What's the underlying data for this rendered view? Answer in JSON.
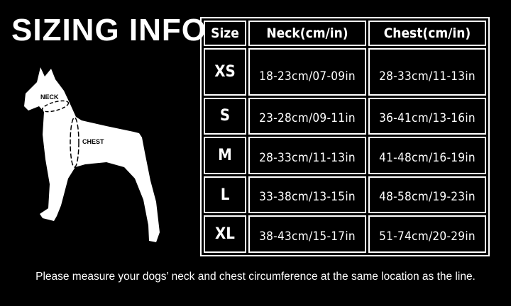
{
  "title": "SIZING INFO",
  "diagram": {
    "neck_label": "NECK",
    "chest_label": "CHEST"
  },
  "table": {
    "headers": [
      "Size",
      "Neck(cm/in)",
      "Chest(cm/in)"
    ],
    "rows": [
      {
        "size": "XS",
        "neck": "18-23cm/07-09in",
        "chest": "28-33cm/11-13in"
      },
      {
        "size": "S",
        "neck": "23-28cm/09-11in",
        "chest": "36-41cm/13-16in"
      },
      {
        "size": "M",
        "neck": "28-33cm/11-13in",
        "chest": "41-48cm/16-19in"
      },
      {
        "size": "L",
        "neck": "33-38cm/13-15in",
        "chest": "48-58cm/19-23in"
      },
      {
        "size": "XL",
        "neck": "38-43cm/15-17in",
        "chest": "51-74cm/20-29in"
      }
    ]
  },
  "footer": "Please measure your dogs’  neck and chest circumference at the same location as the line."
}
